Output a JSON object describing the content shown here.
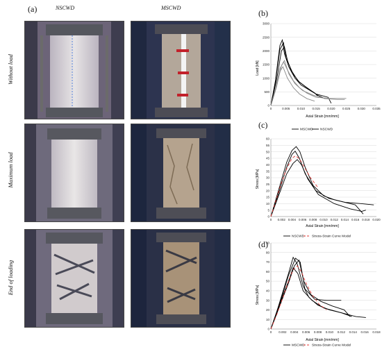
{
  "panel_a": {
    "letter": "(a)",
    "columns": [
      "NSCWD",
      "MSCWD"
    ],
    "rows": [
      "Without load",
      "Maximum load",
      "End of loading"
    ]
  },
  "chart_data": [
    {
      "id": "b",
      "letter": "(b)",
      "type": "line",
      "xlabel": "Axial Strain [mm/mm]",
      "ylabel": "Load [kN]",
      "xlim": [
        0,
        0.035
      ],
      "ylim": [
        0,
        3000
      ],
      "xticks": [
        "0",
        "0.005",
        "0.010",
        "0.015",
        "0.020",
        "0.025",
        "0.030",
        "0.035"
      ],
      "xtick_values": [
        0,
        0.005,
        0.01,
        0.015,
        0.02,
        0.025,
        0.03,
        0.035
      ],
      "yticks": [
        "0",
        "500",
        "1000",
        "1500",
        "2000",
        "2500",
        "3000"
      ],
      "ytick_values": [
        0,
        500,
        1000,
        1500,
        2000,
        2500,
        3000
      ],
      "grid": true,
      "legend": [],
      "series": [
        {
          "color": "#000000",
          "points": [
            [
              0,
              0
            ],
            [
              0.0015,
              900
            ],
            [
              0.003,
              2200
            ],
            [
              0.0038,
              2400
            ],
            [
              0.0045,
              1900
            ],
            [
              0.006,
              1400
            ],
            [
              0.008,
              1000
            ],
            [
              0.01,
              750
            ],
            [
              0.013,
              550
            ],
            [
              0.016,
              350
            ],
            [
              0.018,
              250
            ]
          ]
        },
        {
          "color": "#000000",
          "points": [
            [
              0,
              0
            ],
            [
              0.0015,
              850
            ],
            [
              0.003,
              2050
            ],
            [
              0.0042,
              2300
            ],
            [
              0.005,
              1750
            ],
            [
              0.007,
              1250
            ],
            [
              0.009,
              900
            ],
            [
              0.012,
              650
            ],
            [
              0.015,
              420
            ],
            [
              0.019,
              300
            ],
            [
              0.02,
              80
            ]
          ]
        },
        {
          "color": "#000000",
          "points": [
            [
              0,
              0
            ],
            [
              0.002,
              1000
            ],
            [
              0.0035,
              2000
            ],
            [
              0.0045,
              2150
            ],
            [
              0.0055,
              1650
            ],
            [
              0.007,
              1200
            ],
            [
              0.0095,
              850
            ],
            [
              0.0125,
              600
            ],
            [
              0.0145,
              460
            ],
            [
              0.0155,
              350
            ]
          ]
        },
        {
          "color": "#8a8a8a",
          "points": [
            [
              0,
              0
            ],
            [
              0.0015,
              600
            ],
            [
              0.003,
              1350
            ],
            [
              0.0042,
              1600
            ],
            [
              0.0055,
              1300
            ],
            [
              0.0075,
              900
            ],
            [
              0.0095,
              650
            ],
            [
              0.012,
              450
            ],
            [
              0.015,
              300
            ],
            [
              0.02,
              260
            ],
            [
              0.025,
              260
            ]
          ]
        },
        {
          "color": "#8a8a8a",
          "points": [
            [
              0,
              0
            ],
            [
              0.0018,
              650
            ],
            [
              0.0035,
              1450
            ],
            [
              0.0045,
              1650
            ],
            [
              0.006,
              1150
            ],
            [
              0.008,
              800
            ],
            [
              0.0105,
              550
            ],
            [
              0.014,
              380
            ],
            [
              0.018,
              250
            ],
            [
              0.022,
              220
            ],
            [
              0.0245,
              220
            ]
          ]
        },
        {
          "color": "#8a8a8a",
          "points": [
            [
              0,
              0
            ],
            [
              0.0015,
              550
            ],
            [
              0.003,
              1250
            ],
            [
              0.004,
              1420
            ],
            [
              0.0055,
              1000
            ],
            [
              0.0075,
              650
            ],
            [
              0.0095,
              420
            ],
            [
              0.012,
              250
            ],
            [
              0.0145,
              160
            ]
          ]
        }
      ]
    },
    {
      "id": "c",
      "letter": "(c)",
      "type": "line",
      "xlabel": "Axial Strain [mm/mm]",
      "ylabel": "Stress [MPa]",
      "xlim": [
        0,
        0.02
      ],
      "ylim": [
        0,
        60
      ],
      "xticks": [
        "0",
        "0.002",
        "0.004",
        "0.006",
        "0.008",
        "0.010",
        "0.012",
        "0.014",
        "0.016",
        "0.018",
        "0.020"
      ],
      "xtick_values": [
        0,
        0.002,
        0.004,
        0.006,
        0.008,
        0.01,
        0.012,
        0.014,
        0.016,
        0.018,
        0.02
      ],
      "yticks": [
        "0",
        "5",
        "10",
        "15",
        "20",
        "25",
        "30",
        "35",
        "40",
        "45",
        "50",
        "55",
        "60"
      ],
      "ytick_values": [
        0,
        5,
        10,
        15,
        20,
        25,
        30,
        35,
        40,
        45,
        50,
        55,
        60
      ],
      "grid": true,
      "legend": [
        {
          "label": "MSCWD",
          "color": "#000000",
          "dash": ""
        },
        {
          "label": "NSCWD",
          "color": "#000000",
          "dash": ""
        }
      ],
      "series": [
        {
          "color": "#000000",
          "points": [
            [
              0,
              0
            ],
            [
              0.001,
              14
            ],
            [
              0.002,
              28
            ],
            [
              0.003,
              42
            ],
            [
              0.004,
              51
            ],
            [
              0.0048,
              54
            ],
            [
              0.0055,
              50
            ],
            [
              0.0065,
              38
            ],
            [
              0.008,
              24
            ],
            [
              0.01,
              16
            ],
            [
              0.012,
              13
            ],
            [
              0.014,
              11
            ],
            [
              0.016,
              9
            ],
            [
              0.0175,
              2
            ]
          ]
        },
        {
          "color": "#000000",
          "points": [
            [
              0,
              0
            ],
            [
              0.001,
              12
            ],
            [
              0.002,
              25
            ],
            [
              0.003,
              38
            ],
            [
              0.004,
              48
            ],
            [
              0.0046,
              50.5
            ],
            [
              0.0054,
              45
            ],
            [
              0.0065,
              33
            ],
            [
              0.0085,
              20
            ],
            [
              0.011,
              14
            ],
            [
              0.014,
              11
            ],
            [
              0.017,
              10
            ],
            [
              0.0195,
              9
            ]
          ]
        },
        {
          "color": "#000000",
          "points": [
            [
              0,
              0
            ],
            [
              0.001,
              11
            ],
            [
              0.002,
              22
            ],
            [
              0.003,
              33
            ],
            [
              0.0042,
              41
            ],
            [
              0.005,
              44
            ],
            [
              0.0058,
              40
            ],
            [
              0.007,
              29
            ],
            [
              0.009,
              17
            ],
            [
              0.012,
              10
            ],
            [
              0.015,
              6
            ],
            [
              0.0172,
              4
            ],
            [
              0.018,
              5
            ]
          ]
        },
        {
          "color": "#e53935",
          "dash": "4,3",
          "points": [
            [
              0,
              0
            ],
            [
              0.001,
              13
            ],
            [
              0.002,
              26
            ],
            [
              0.003,
              37
            ],
            [
              0.004,
              45
            ],
            [
              0.0047,
              47
            ],
            [
              0.0055,
              44
            ],
            [
              0.0065,
              37
            ],
            [
              0.0075,
              30
            ],
            [
              0.009,
              22
            ]
          ]
        }
      ]
    },
    {
      "id": "d",
      "letter": "(d)",
      "type": "line",
      "xlabel": "Axial Strain [mm/mm]",
      "ylabel": "Stress [MPa]",
      "xlim": [
        0,
        0.018
      ],
      "ylim": [
        0,
        90
      ],
      "xticks": [
        "0",
        "0.002",
        "0.004",
        "0.006",
        "0.008",
        "0.010",
        "0.012",
        "0.014",
        "0.016",
        "0.018"
      ],
      "xtick_values": [
        0,
        0.002,
        0.004,
        0.006,
        0.008,
        0.01,
        0.012,
        0.014,
        0.016,
        0.018
      ],
      "yticks": [
        "0",
        "10",
        "20",
        "30",
        "40",
        "50",
        "60",
        "70",
        "80",
        "90"
      ],
      "ytick_values": [
        0,
        10,
        20,
        30,
        40,
        50,
        60,
        70,
        80,
        90
      ],
      "grid": true,
      "legend_top": [
        {
          "label": "NSCWD",
          "color": "#000000",
          "dash": ""
        },
        {
          "label": "Stress-Strain Curve Model",
          "color": "#e53935",
          "dash": "4,3"
        }
      ],
      "legend_bottom": [
        {
          "label": "MSCWD",
          "color": "#000000",
          "dash": ""
        },
        {
          "label": "Stress-Strain Curve Model",
          "color": "#e53935",
          "dash": "4,3"
        }
      ],
      "series": [
        {
          "color": "#000000",
          "points": [
            [
              0,
              0
            ],
            [
              0.001,
              18
            ],
            [
              0.002,
              38
            ],
            [
              0.003,
              58
            ],
            [
              0.0038,
              75
            ],
            [
              0.0045,
              68
            ],
            [
              0.0055,
              45
            ],
            [
              0.0065,
              33
            ],
            [
              0.008,
              25
            ],
            [
              0.01,
              20
            ],
            [
              0.012,
              17
            ],
            [
              0.0138,
              13
            ]
          ]
        },
        {
          "color": "#000000",
          "points": [
            [
              0,
              0
            ],
            [
              0.001,
              18
            ],
            [
              0.002,
              36
            ],
            [
              0.003,
              56
            ],
            [
              0.0042,
              74
            ],
            [
              0.005,
              70
            ],
            [
              0.0058,
              42
            ],
            [
              0.0075,
              31
            ],
            [
              0.0095,
              30
            ],
            [
              0.012,
              30
            ]
          ]
        },
        {
          "color": "#000000",
          "points": [
            [
              0,
              0
            ],
            [
              0.001,
              17
            ],
            [
              0.002,
              34
            ],
            [
              0.003,
              50
            ],
            [
              0.0038,
              64
            ],
            [
              0.0046,
              58
            ],
            [
              0.0055,
              40
            ],
            [
              0.007,
              30
            ],
            [
              0.009,
              22
            ],
            [
              0.012,
              17
            ],
            [
              0.0145,
              13
            ],
            [
              0.0162,
              12
            ]
          ]
        },
        {
          "color": "#000000",
          "points": [
            [
              0,
              0
            ],
            [
              0.001,
              16
            ],
            [
              0.002,
              32
            ],
            [
              0.003,
              48
            ],
            [
              0.004,
              66
            ],
            [
              0.0048,
              72
            ],
            [
              0.0056,
              50
            ],
            [
              0.0068,
              36
            ],
            [
              0.0085,
              29
            ],
            [
              0.0105,
              24
            ],
            [
              0.0125,
              20
            ],
            [
              0.0135,
              13
            ]
          ]
        },
        {
          "color": "#e53935",
          "dash": "4,3",
          "points": [
            [
              0,
              0
            ],
            [
              0.001,
              15
            ],
            [
              0.002,
              32
            ],
            [
              0.003,
              50
            ],
            [
              0.0038,
              62
            ],
            [
              0.0045,
              66
            ],
            [
              0.0052,
              60
            ],
            [
              0.006,
              48
            ],
            [
              0.007,
              36
            ],
            [
              0.0082,
              26
            ],
            [
              0.0095,
              20
            ]
          ]
        }
      ]
    }
  ]
}
